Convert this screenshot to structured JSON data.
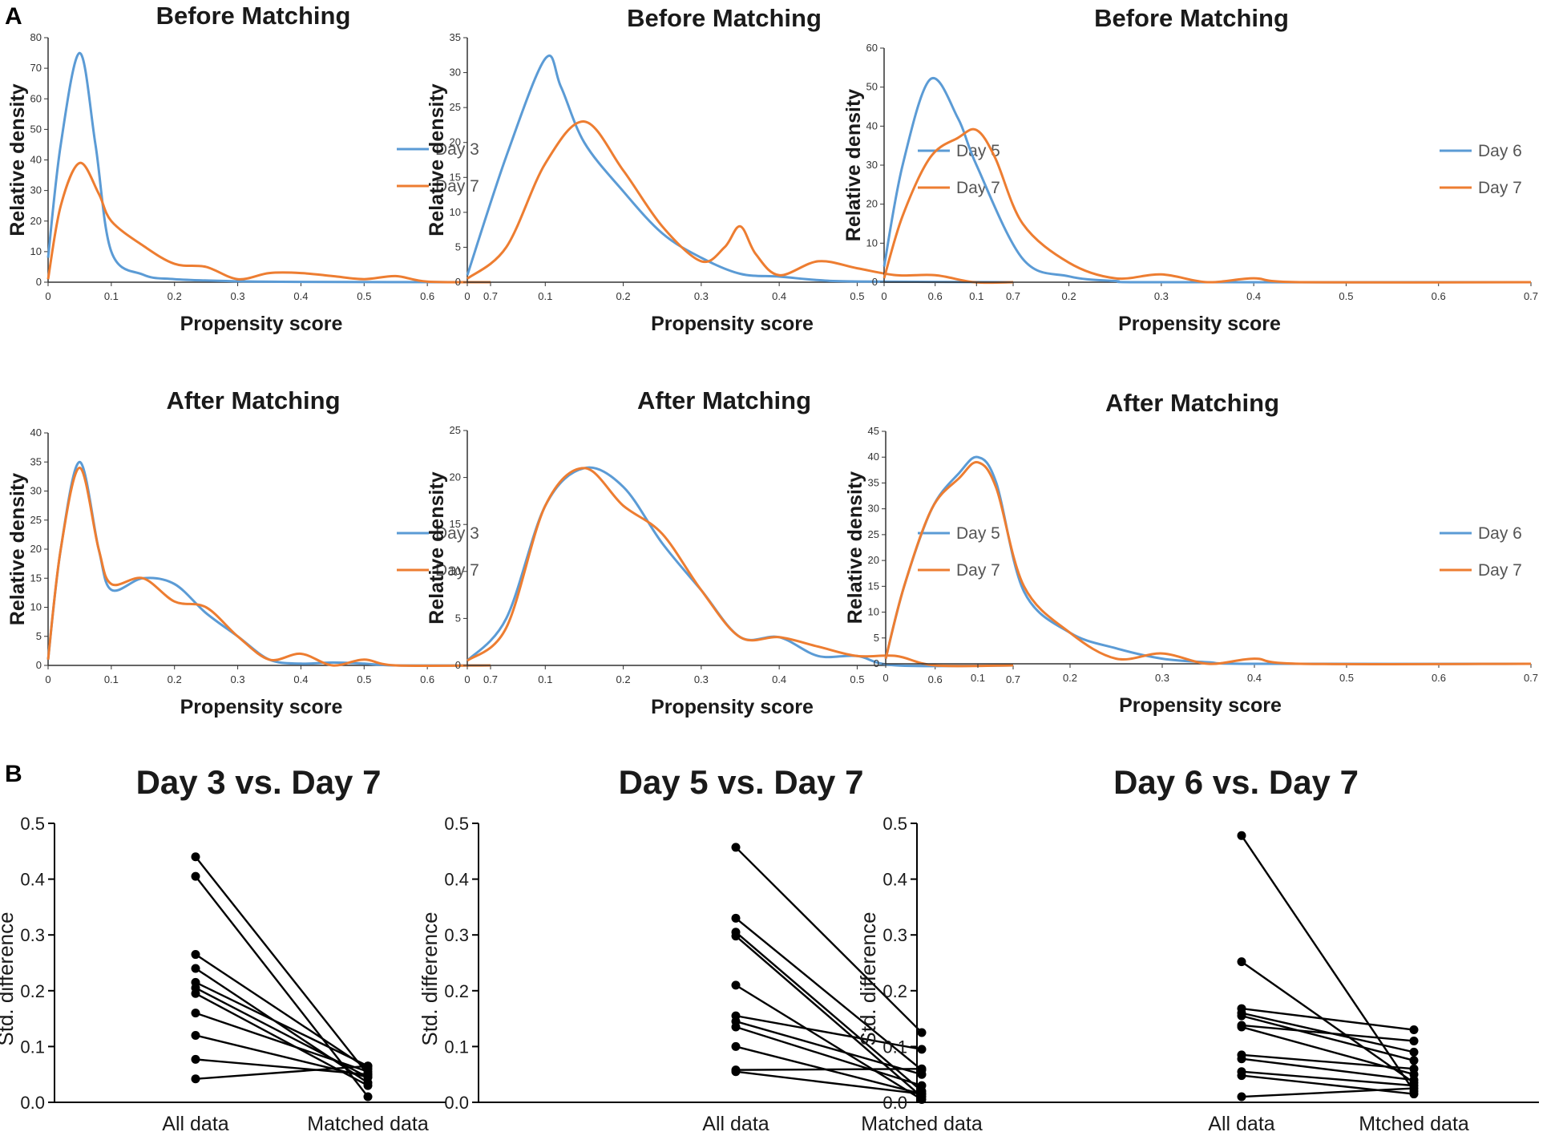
{
  "panel_labels": {
    "a": "A",
    "b": "B"
  },
  "colors": {
    "series1": "#5b9bd5",
    "series2": "#ed7d31",
    "axis": "#333333",
    "paired": "#000000"
  },
  "chart_data": [
    {
      "id": "a-before-day3",
      "type": "line",
      "title": "Before Matching",
      "xlabel": "Propensity score",
      "ylabel": "Relative density",
      "xlim": [
        0,
        0.7
      ],
      "ylim": [
        0,
        80
      ],
      "xticks": [
        "0",
        "0.1",
        "0.2",
        "0.3",
        "0.4",
        "0.5",
        "0.6",
        "0.7"
      ],
      "yticks": [
        "0",
        "10",
        "20",
        "30",
        "40",
        "50",
        "60",
        "70",
        "80"
      ],
      "series": [
        {
          "name": "Day 3",
          "points": [
            [
              0,
              8
            ],
            [
              0.02,
              45
            ],
            [
              0.05,
              75
            ],
            [
              0.075,
              45
            ],
            [
              0.1,
              10
            ],
            [
              0.15,
              2.5
            ],
            [
              0.2,
              1
            ],
            [
              0.3,
              0.3
            ],
            [
              0.4,
              0.1
            ],
            [
              0.7,
              0
            ]
          ]
        },
        {
          "name": "Day 7",
          "points": [
            [
              0,
              1
            ],
            [
              0.02,
              25
            ],
            [
              0.05,
              39
            ],
            [
              0.08,
              29
            ],
            [
              0.1,
              20
            ],
            [
              0.15,
              12
            ],
            [
              0.2,
              6
            ],
            [
              0.25,
              5
            ],
            [
              0.3,
              1
            ],
            [
              0.35,
              3
            ],
            [
              0.4,
              3
            ],
            [
              0.45,
              2
            ],
            [
              0.5,
              1
            ],
            [
              0.55,
              2
            ],
            [
              0.6,
              0.2
            ],
            [
              0.7,
              0
            ]
          ]
        }
      ]
    },
    {
      "id": "a-before-day5",
      "type": "line",
      "title": "Before Matching",
      "xlabel": "Propensity score",
      "ylabel": "Relative density",
      "xlim": [
        0,
        0.7
      ],
      "ylim": [
        0,
        35
      ],
      "xticks": [
        "0",
        "0.1",
        "0.2",
        "0.3",
        "0.4",
        "0.5",
        "0.6",
        "0.7"
      ],
      "yticks": [
        "0",
        "5",
        "10",
        "15",
        "20",
        "25",
        "30",
        "35"
      ],
      "series": [
        {
          "name": "Day 5",
          "points": [
            [
              0,
              1
            ],
            [
              0.05,
              18
            ],
            [
              0.1,
              32
            ],
            [
              0.12,
              28
            ],
            [
              0.15,
              20
            ],
            [
              0.2,
              13
            ],
            [
              0.25,
              7
            ],
            [
              0.3,
              3.5
            ],
            [
              0.35,
              1.2
            ],
            [
              0.4,
              0.8
            ],
            [
              0.45,
              0.3
            ],
            [
              0.5,
              0.1
            ],
            [
              0.7,
              0
            ]
          ]
        },
        {
          "name": "Day 7",
          "points": [
            [
              0,
              0.5
            ],
            [
              0.05,
              5
            ],
            [
              0.1,
              17
            ],
            [
              0.15,
              23
            ],
            [
              0.2,
              16
            ],
            [
              0.25,
              8
            ],
            [
              0.3,
              3
            ],
            [
              0.33,
              5
            ],
            [
              0.35,
              8
            ],
            [
              0.37,
              4
            ],
            [
              0.4,
              1
            ],
            [
              0.45,
              3
            ],
            [
              0.5,
              2
            ],
            [
              0.55,
              1
            ],
            [
              0.6,
              1
            ],
            [
              0.65,
              0
            ],
            [
              0.7,
              0
            ]
          ]
        }
      ]
    },
    {
      "id": "a-before-day6",
      "type": "line",
      "title": "Before Matching",
      "xlabel": "Propensity score",
      "ylabel": "Relative density",
      "xlim": [
        0,
        0.7
      ],
      "ylim": [
        0,
        60
      ],
      "xticks": [
        "0",
        "0.1",
        "0.2",
        "0.3",
        "0.4",
        "0.5",
        "0.6",
        "0.7"
      ],
      "yticks": [
        "0",
        "10",
        "20",
        "30",
        "40",
        "50",
        "60"
      ],
      "series": [
        {
          "name": "Day 6",
          "points": [
            [
              0,
              4
            ],
            [
              0.02,
              30
            ],
            [
              0.05,
              52
            ],
            [
              0.08,
              42
            ],
            [
              0.1,
              30
            ],
            [
              0.15,
              6
            ],
            [
              0.2,
              1.5
            ],
            [
              0.25,
              0.3
            ],
            [
              0.3,
              0
            ],
            [
              0.7,
              0
            ]
          ]
        },
        {
          "name": "Day 7",
          "points": [
            [
              0,
              1
            ],
            [
              0.02,
              17
            ],
            [
              0.05,
              32
            ],
            [
              0.08,
              37
            ],
            [
              0.1,
              39
            ],
            [
              0.12,
              32
            ],
            [
              0.15,
              15
            ],
            [
              0.2,
              5
            ],
            [
              0.25,
              1
            ],
            [
              0.3,
              2
            ],
            [
              0.35,
              0
            ],
            [
              0.4,
              1
            ],
            [
              0.45,
              0
            ],
            [
              0.7,
              0
            ]
          ]
        }
      ]
    },
    {
      "id": "a-after-day3",
      "type": "line",
      "title": "After Matching",
      "xlabel": "Propensity score",
      "ylabel": "Relative density",
      "xlim": [
        0,
        0.7
      ],
      "ylim": [
        0,
        40
      ],
      "xticks": [
        "0",
        "0.1",
        "0.2",
        "0.3",
        "0.4",
        "0.5",
        "0.6",
        "0.7"
      ],
      "yticks": [
        "0",
        "5",
        "10",
        "15",
        "20",
        "25",
        "30",
        "35",
        "40"
      ],
      "series": [
        {
          "name": "Day 3",
          "points": [
            [
              0,
              1
            ],
            [
              0.02,
              20
            ],
            [
              0.05,
              35
            ],
            [
              0.08,
              20
            ],
            [
              0.1,
              13
            ],
            [
              0.15,
              15
            ],
            [
              0.2,
              14
            ],
            [
              0.25,
              9
            ],
            [
              0.3,
              5
            ],
            [
              0.35,
              1
            ],
            [
              0.4,
              0.3
            ],
            [
              0.45,
              0.5
            ],
            [
              0.5,
              0.3
            ],
            [
              0.55,
              0
            ],
            [
              0.7,
              0
            ]
          ]
        },
        {
          "name": "Day 7",
          "points": [
            [
              0,
              1
            ],
            [
              0.02,
              20
            ],
            [
              0.05,
              34
            ],
            [
              0.08,
              20
            ],
            [
              0.1,
              14
            ],
            [
              0.15,
              15
            ],
            [
              0.2,
              11
            ],
            [
              0.25,
              10
            ],
            [
              0.3,
              5
            ],
            [
              0.35,
              1
            ],
            [
              0.4,
              2
            ],
            [
              0.45,
              0
            ],
            [
              0.5,
              1
            ],
            [
              0.55,
              0
            ],
            [
              0.7,
              0
            ]
          ]
        }
      ]
    },
    {
      "id": "a-after-day5",
      "type": "line",
      "title": "After Matching",
      "xlabel": "Propensity score",
      "ylabel": "Relative density",
      "xlim": [
        0,
        0.7
      ],
      "ylim": [
        0,
        25
      ],
      "xticks": [
        "0",
        "0.1",
        "0.2",
        "0.3",
        "0.4",
        "0.5",
        "0.6",
        "0.7"
      ],
      "yticks": [
        "0",
        "5",
        "10",
        "15",
        "20",
        "25"
      ],
      "series": [
        {
          "name": "Day 5",
          "points": [
            [
              0,
              0.5
            ],
            [
              0.05,
              5
            ],
            [
              0.1,
              17
            ],
            [
              0.15,
              21
            ],
            [
              0.2,
              19
            ],
            [
              0.25,
              13
            ],
            [
              0.3,
              8
            ],
            [
              0.35,
              3
            ],
            [
              0.4,
              3
            ],
            [
              0.45,
              1
            ],
            [
              0.5,
              1
            ],
            [
              0.55,
              0
            ],
            [
              0.7,
              0
            ]
          ]
        },
        {
          "name": "Day 7",
          "points": [
            [
              0,
              0.5
            ],
            [
              0.05,
              4
            ],
            [
              0.1,
              17
            ],
            [
              0.15,
              21
            ],
            [
              0.2,
              17
            ],
            [
              0.25,
              14
            ],
            [
              0.3,
              8
            ],
            [
              0.35,
              3
            ],
            [
              0.4,
              3
            ],
            [
              0.45,
              2
            ],
            [
              0.5,
              1
            ],
            [
              0.55,
              1
            ],
            [
              0.6,
              0
            ],
            [
              0.7,
              0
            ]
          ]
        }
      ]
    },
    {
      "id": "a-after-day6",
      "type": "line",
      "title": "After Matching",
      "xlabel": "Propensity score",
      "ylabel": "Relative density",
      "xlim": [
        0,
        0.7
      ],
      "ylim": [
        0,
        45
      ],
      "xticks": [
        "0",
        "0.1",
        "0.2",
        "0.3",
        "0.4",
        "0.5",
        "0.6",
        "0.7"
      ],
      "yticks": [
        "0",
        "5",
        "10",
        "15",
        "20",
        "25",
        "30",
        "35",
        "40",
        "45"
      ],
      "series": [
        {
          "name": "Day 6",
          "points": [
            [
              0,
              1
            ],
            [
              0.02,
              15
            ],
            [
              0.05,
              30
            ],
            [
              0.08,
              37
            ],
            [
              0.1,
              40
            ],
            [
              0.12,
              35
            ],
            [
              0.15,
              14
            ],
            [
              0.2,
              6
            ],
            [
              0.25,
              3
            ],
            [
              0.3,
              1
            ],
            [
              0.35,
              0.3
            ],
            [
              0.4,
              0
            ],
            [
              0.7,
              0
            ]
          ]
        },
        {
          "name": "Day 7",
          "points": [
            [
              0,
              1
            ],
            [
              0.02,
              15
            ],
            [
              0.05,
              30
            ],
            [
              0.08,
              36
            ],
            [
              0.1,
              39
            ],
            [
              0.12,
              34
            ],
            [
              0.15,
              15
            ],
            [
              0.2,
              6
            ],
            [
              0.25,
              1
            ],
            [
              0.3,
              2
            ],
            [
              0.35,
              0
            ],
            [
              0.4,
              1
            ],
            [
              0.45,
              0
            ],
            [
              0.7,
              0
            ]
          ]
        }
      ]
    },
    {
      "id": "b-day3",
      "type": "line",
      "title": "Day 3 vs. Day 7",
      "ylabel": "Std. difference",
      "categories": [
        "All data",
        "Matched data"
      ],
      "ylim": [
        0,
        0.5
      ],
      "yticks": [
        "0.0",
        "0.1",
        "0.2",
        "0.3",
        "0.4",
        "0.5"
      ],
      "pairs": [
        [
          0.44,
          0.05
        ],
        [
          0.405,
          0.01
        ],
        [
          0.265,
          0.06
        ],
        [
          0.24,
          0.035
        ],
        [
          0.215,
          0.065
        ],
        [
          0.205,
          0.045
        ],
        [
          0.195,
          0.03
        ],
        [
          0.16,
          0.055
        ],
        [
          0.12,
          0.045
        ],
        [
          0.077,
          0.05
        ],
        [
          0.042,
          0.065
        ]
      ]
    },
    {
      "id": "b-day5",
      "type": "line",
      "title": "Day 5 vs. Day 7",
      "ylabel": "Std. difference",
      "categories": [
        "All data",
        "Matched data"
      ],
      "ylim": [
        0,
        0.5
      ],
      "yticks": [
        "0.0",
        "0.1",
        "0.2",
        "0.3",
        "0.4",
        "0.5"
      ],
      "pairs": [
        [
          0.457,
          0.125
        ],
        [
          0.33,
          0.058
        ],
        [
          0.305,
          0.02
        ],
        [
          0.298,
          0.01
        ],
        [
          0.21,
          0.005
        ],
        [
          0.155,
          0.095
        ],
        [
          0.145,
          0.05
        ],
        [
          0.135,
          0.03
        ],
        [
          0.1,
          0.015
        ],
        [
          0.058,
          0.06
        ],
        [
          0.055,
          0.015
        ]
      ]
    },
    {
      "id": "b-day6",
      "type": "line",
      "title": "Day 6 vs. Day 7",
      "ylabel": "Std. difference",
      "categories": [
        "All data",
        "Mtched data"
      ],
      "ylim": [
        0,
        0.5
      ],
      "yticks": [
        "0.0",
        "0.1",
        "0.2",
        "0.3",
        "0.4",
        "0.5"
      ],
      "pairs": [
        [
          0.478,
          0.02
        ],
        [
          0.252,
          0.035
        ],
        [
          0.168,
          0.13
        ],
        [
          0.16,
          0.09
        ],
        [
          0.155,
          0.075
        ],
        [
          0.138,
          0.11
        ],
        [
          0.135,
          0.05
        ],
        [
          0.085,
          0.06
        ],
        [
          0.078,
          0.04
        ],
        [
          0.055,
          0.03
        ],
        [
          0.048,
          0.015
        ],
        [
          0.01,
          0.025
        ]
      ]
    }
  ]
}
